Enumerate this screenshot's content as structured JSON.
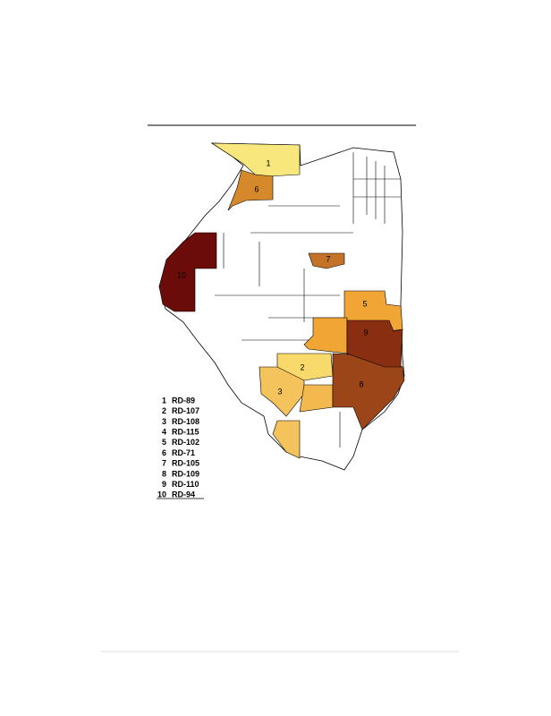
{
  "regions": [
    {
      "number": "1",
      "code": "RD-89",
      "color": "#f8e77c"
    },
    {
      "number": "2",
      "code": "RD-107",
      "color": "#f7da6b"
    },
    {
      "number": "3",
      "code": "RD-108",
      "color": "#f4c35c"
    },
    {
      "number": "4",
      "code": "RD-115",
      "color": "#f3b84e"
    },
    {
      "number": "5",
      "code": "RD-102",
      "color": "#f0a535"
    },
    {
      "number": "6",
      "code": "RD-71",
      "color": "#d5892b"
    },
    {
      "number": "7",
      "code": "RD-105",
      "color": "#c47228"
    },
    {
      "number": "8",
      "code": "RD-109",
      "color": "#9c4518"
    },
    {
      "number": "9",
      "code": "RD-110",
      "color": "#8a2e12"
    },
    {
      "number": "10",
      "code": "RD-94",
      "color": "#6b0c0a"
    }
  ]
}
